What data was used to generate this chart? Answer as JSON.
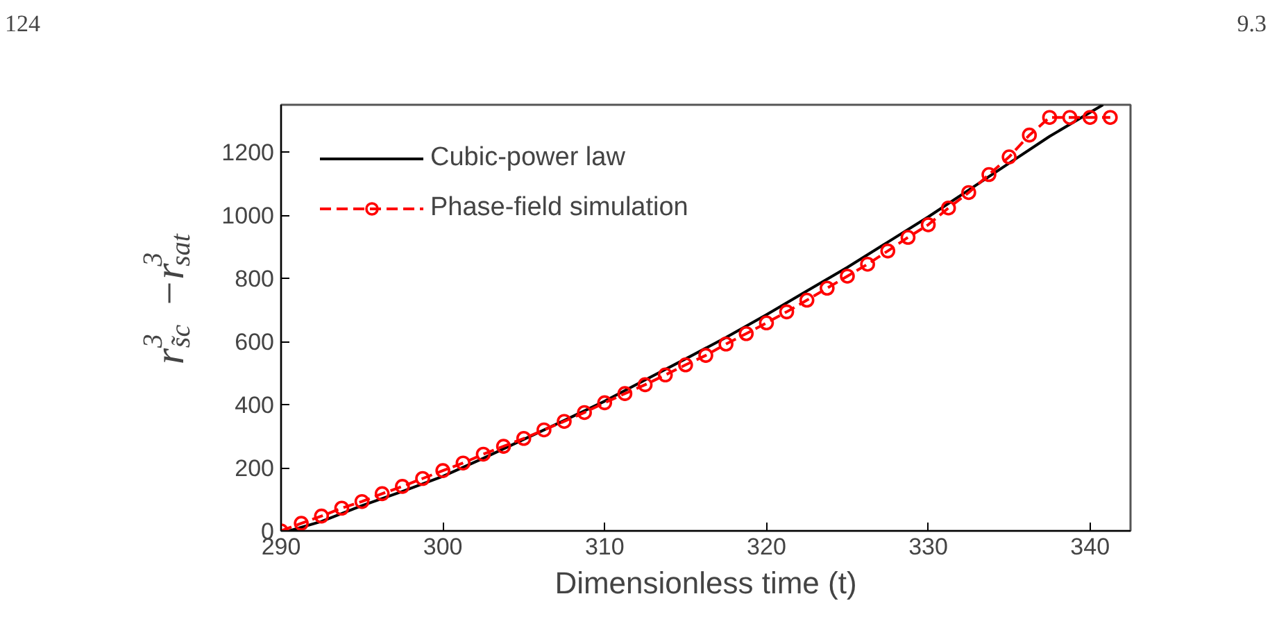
{
  "chart_data": {
    "type": "line",
    "xlabel": "Dimensionless time (t)",
    "ylabel": "r$^{3}$$_{s̃c}$−r$^{3}$$_{sat}$",
    "annotations": [
      "124",
      "9.3"
    ],
    "xlim": [
      290,
      342.5
    ],
    "xticks": [
      290,
      300,
      310,
      320,
      330,
      340
    ],
    "ylim": [
      0,
      1350
    ],
    "yticks": [
      0,
      200,
      400,
      600,
      800,
      1000,
      1200
    ],
    "grid": false,
    "legend": "top left",
    "series": [
      {
        "name": "Cubic-power law",
        "color": "#000000",
        "marker": "none",
        "line_style": "solid",
        "x": [
          290.5,
          292.5,
          295,
          297.5,
          300,
          302.5,
          305,
          307.5,
          310,
          312.5,
          315,
          317.5,
          320,
          322.5,
          325,
          327.5,
          330,
          332.5,
          335,
          337.5,
          340.8
        ],
        "values": [
          0,
          30,
          80,
          125,
          173,
          230,
          290,
          350,
          411,
          478,
          545,
          613,
          685,
          760,
          835,
          915,
          995,
          1080,
          1165,
          1250,
          1350
        ]
      },
      {
        "name": "Phase-field simulation",
        "color": "#ff0000",
        "marker": "circle",
        "line_style": "dashed",
        "x": [
          290,
          291.25,
          292.5,
          293.75,
          295,
          296.25,
          297.5,
          298.75,
          300,
          301.25,
          302.5,
          303.75,
          305,
          306.25,
          307.5,
          308.75,
          310,
          311.25,
          312.5,
          313.75,
          315,
          316.25,
          317.5,
          318.75,
          320,
          321.25,
          322.5,
          323.75,
          325,
          326.25,
          327.5,
          328.75,
          330,
          331.25,
          332.5,
          333.75,
          335,
          336.25,
          337.5,
          338.75,
          340,
          341.25
        ],
        "values": [
          0,
          24,
          47,
          72,
          93,
          118,
          141,
          166,
          191,
          215,
          243,
          268,
          293,
          320,
          347,
          375,
          406,
          435,
          463,
          494,
          526,
          556,
          592,
          625,
          659,
          694,
          731,
          769,
          807,
          845,
          887,
          930,
          970,
          1023,
          1072,
          1129,
          1185,
          1254,
          1310,
          1310,
          1310,
          1310
        ]
      }
    ]
  }
}
